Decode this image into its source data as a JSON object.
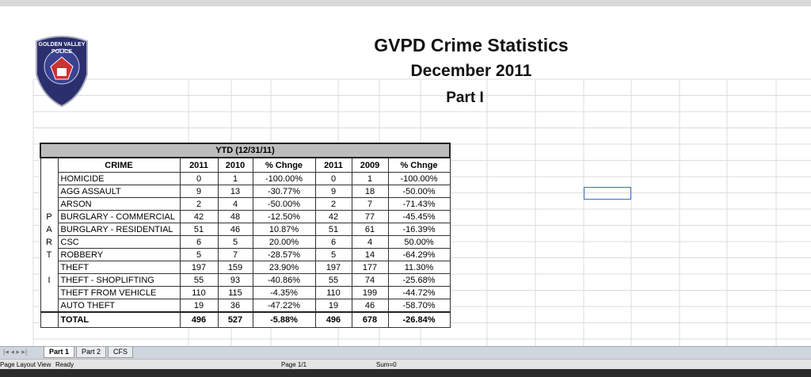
{
  "header": {
    "title": "GVPD Crime Statistics",
    "subtitle": "December 2011",
    "part": "Part I"
  },
  "logo": {
    "line1": "GOLDEN VALLEY",
    "line2": "POLICE"
  },
  "table": {
    "caption": "YTD (12/31/11)",
    "columns": [
      "CRIME",
      "2011",
      "2010",
      "% Chnge",
      "2011",
      "2009",
      "% Chnge"
    ],
    "rows": [
      {
        "cells": [
          "HOMICIDE",
          "0",
          "1",
          "-100.00%",
          "0",
          "1",
          "-100.00%"
        ]
      },
      {
        "cells": [
          "AGG ASSAULT",
          "9",
          "13",
          "-30.77%",
          "9",
          "18",
          "-50.00%"
        ]
      },
      {
        "cells": [
          "ARSON",
          "2",
          "4",
          "-50.00%",
          "2",
          "7",
          "-71.43%"
        ]
      },
      {
        "section": "P",
        "cells": [
          "BURGLARY - COMMERCIAL",
          "42",
          "48",
          "-12.50%",
          "42",
          "77",
          "-45.45%"
        ]
      },
      {
        "section": "A",
        "cells": [
          "BURGLARY - RESIDENTIAL",
          "51",
          "46",
          "10.87%",
          "51",
          "61",
          "-16.39%"
        ]
      },
      {
        "section": "R",
        "cells": [
          "CSC",
          "6",
          "5",
          "20.00%",
          "6",
          "4",
          "50.00%"
        ]
      },
      {
        "section": "T",
        "cells": [
          "ROBBERY",
          "5",
          "7",
          "-28.57%",
          "5",
          "14",
          "-64.29%"
        ]
      },
      {
        "cells": [
          "THEFT",
          "197",
          "159",
          "23.90%",
          "197",
          "177",
          "11.30%"
        ]
      },
      {
        "section": "I",
        "cells": [
          "THEFT - SHOPLIFTING",
          "55",
          "93",
          "-40.86%",
          "55",
          "74",
          "-25.68%"
        ]
      },
      {
        "cells": [
          "THEFT FROM VEHICLE",
          "110",
          "115",
          "-4.35%",
          "110",
          "199",
          "-44.72%"
        ]
      },
      {
        "cells": [
          "AUTO THEFT",
          "19",
          "36",
          "-47.22%",
          "19",
          "46",
          "-58.70%"
        ]
      }
    ],
    "total": [
      "TOTAL",
      "496",
      "527",
      "-5.88%",
      "496",
      "678",
      "-26.84%"
    ]
  },
  "tabs": [
    "Part 1",
    "Part 2",
    "CFS"
  ],
  "status": {
    "view": "Page Layout View",
    "state": "Ready",
    "page": "Page 1/1",
    "sum": "Sum=0"
  }
}
